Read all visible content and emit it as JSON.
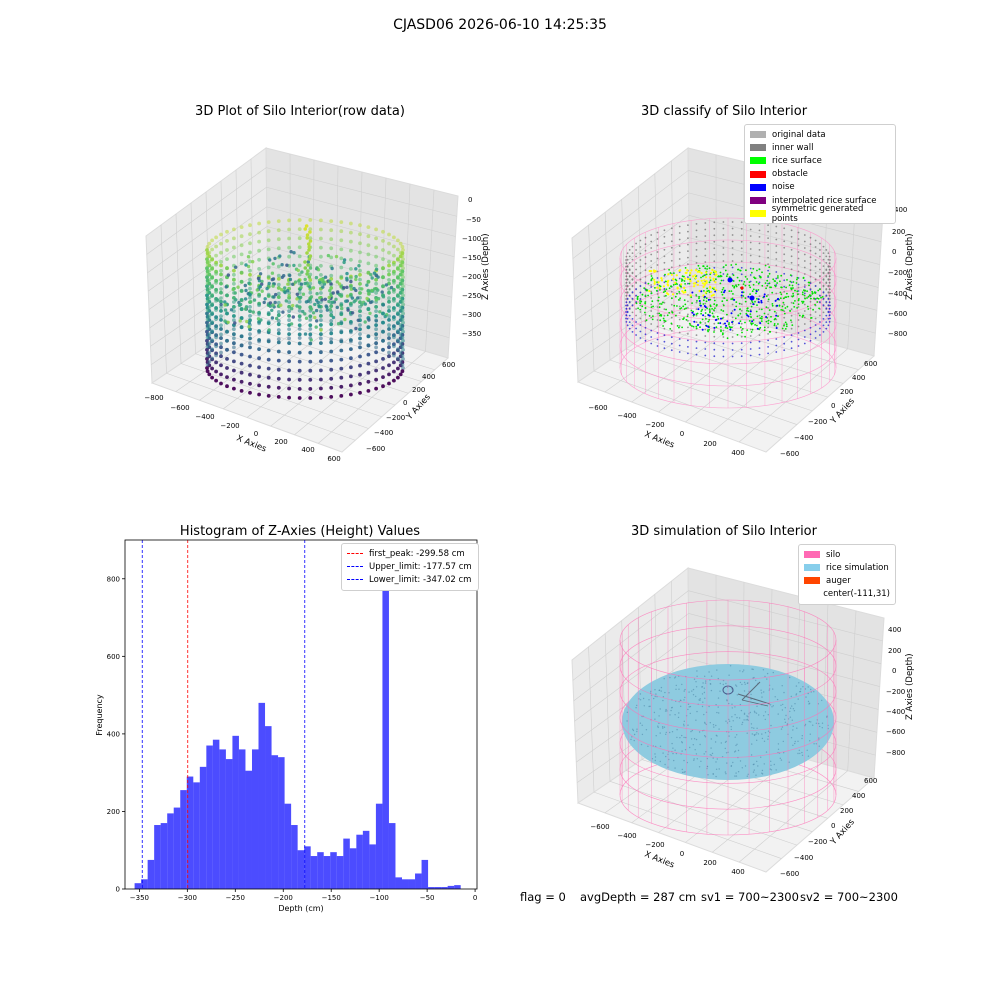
{
  "suptitle": "CJASD06 2026-06-10 14:25:35",
  "panels": {
    "raw": {
      "title": "3D Plot of Silo Interior(row data)",
      "xlabel": "X Axies",
      "ylabel": "Y Axies",
      "zlabel": "Z Axies (Depth)",
      "xticks": [
        "−800",
        "−600",
        "−400",
        "−200",
        "0",
        "200",
        "400",
        "600"
      ],
      "yticks": [
        "−600",
        "−400",
        "−200",
        "0",
        "200",
        "400",
        "600"
      ],
      "zticks": [
        "0",
        "−50",
        "−100",
        "−150",
        "−200",
        "−250",
        "−300",
        "−350"
      ]
    },
    "classify": {
      "title": "3D classify of Silo Interior",
      "xlabel": "X Axies",
      "ylabel": "Y Axies",
      "zlabel": "Z Axies (Depth)",
      "xticks": [
        "−600",
        "−400",
        "−200",
        "0",
        "200",
        "400"
      ],
      "yticks": [
        "−600",
        "−400",
        "−200",
        "0",
        "200",
        "400",
        "600"
      ],
      "zticks": [
        "200",
        "0",
        "−200",
        "−400",
        "−600",
        "−800"
      ],
      "ztick_top": "400",
      "legend": [
        {
          "label": "original data",
          "color": "#b0b0b0"
        },
        {
          "label": "inner wall",
          "color": "#808080"
        },
        {
          "label": "rice surface",
          "color": "#00ff00"
        },
        {
          "label": "obstacle",
          "color": "#ff0000"
        },
        {
          "label": "noise",
          "color": "#0000ff"
        },
        {
          "label": "interpolated rice surface",
          "color": "#800080"
        },
        {
          "label": "symmetric generated points",
          "color": "#ffff00"
        }
      ]
    },
    "histogram": {
      "title": "Histogram of Z-Axies (Height) Values",
      "legend": [
        {
          "label": "first_peak: -299.58 cm",
          "color": "#ff0000"
        },
        {
          "label": "Upper_limit: -177.57 cm",
          "color": "#0000ff"
        },
        {
          "label": "Lower_limit: -347.02 cm",
          "color": "#0000ff"
        }
      ]
    },
    "simulation": {
      "title": "3D simulation of Silo Interior",
      "xlabel": "X Axies",
      "ylabel": "Y Axies",
      "zlabel": "Z Axies (Depth)",
      "xticks": [
        "−600",
        "−400",
        "−200",
        "0",
        "200",
        "400"
      ],
      "yticks": [
        "−600",
        "−400",
        "−200",
        "0",
        "200",
        "400",
        "600"
      ],
      "zticks": [
        "400",
        "200",
        "0",
        "−200",
        "−400",
        "−600",
        "−800"
      ],
      "legend": [
        {
          "label": "silo",
          "color": "#ff69b4"
        },
        {
          "label": "rice simulation",
          "color": "#87ceeb"
        },
        {
          "label": "auger",
          "color": "#ff4500"
        },
        {
          "label": "center(-111,31)",
          "color": ""
        }
      ]
    }
  },
  "footer": {
    "flag": "flag = 0",
    "avg": "avgDepth = 287 cm",
    "sv1": "sv1 = 700~2300",
    "sv2": "sv2 = 700~2300"
  },
  "chart_data": {
    "type": "bar",
    "title": "Histogram of Z-Axies (Height) Values",
    "xlabel": "Depth (cm)",
    "ylabel": "Frequency",
    "xlim": [
      -365,
      2
    ],
    "ylim": [
      0,
      900
    ],
    "xticks": [
      -350,
      -300,
      -250,
      -200,
      -150,
      -100,
      -50,
      0
    ],
    "xtick_labels": [
      "−350",
      "−300",
      "−250",
      "−200",
      "−150",
      "−100",
      "−50",
      "0"
    ],
    "yticks": [
      0,
      200,
      400,
      600,
      800
    ],
    "bin_start": -355,
    "bin_width": 6.8,
    "color": "#0000ff",
    "values": [
      15,
      25,
      75,
      165,
      170,
      195,
      210,
      255,
      290,
      275,
      315,
      370,
      385,
      360,
      335,
      395,
      360,
      305,
      360,
      480,
      420,
      345,
      340,
      220,
      165,
      100,
      110,
      85,
      95,
      85,
      95,
      85,
      130,
      105,
      140,
      150,
      115,
      220,
      855,
      170,
      30,
      25,
      25,
      40,
      75,
      5,
      5,
      5,
      8,
      10
    ],
    "vlines": [
      {
        "name": "first_peak: -299.58 cm",
        "x": -299.58,
        "color": "#ff0000"
      },
      {
        "name": "Upper_limit: -177.57 cm",
        "x": -177.57,
        "color": "#0000ff"
      },
      {
        "name": "Lower_limit: -347.02 cm",
        "x": -347.02,
        "color": "#0000ff"
      }
    ],
    "legend_position": "top-right"
  }
}
